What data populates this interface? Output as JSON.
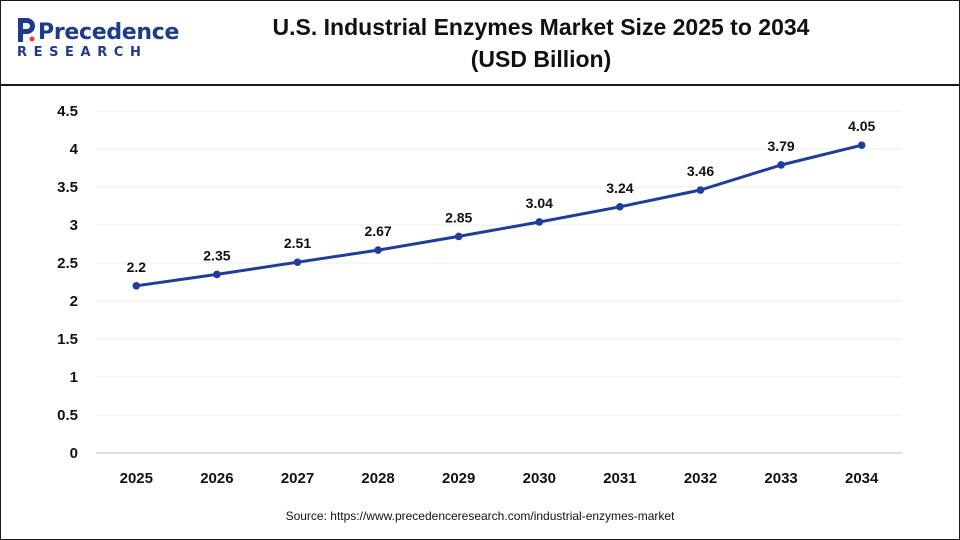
{
  "brand": {
    "name": "Precedence",
    "subtitle": "RESEARCH",
    "color": "#1e3a8a"
  },
  "title_line1": "U.S. Industrial Enzymes Market Size 2025 to 2034",
  "title_line2": "(USD Billion)",
  "source": "Source: https://www.precedenceresearch.com/industrial-enzymes-market",
  "colors": {
    "line": "#1f3d99",
    "grid": "#ececec",
    "axis": "#bfbfbf"
  },
  "chart_data": {
    "type": "line",
    "title": "U.S. Industrial Enzymes Market Size 2025 to 2034 (USD Billion)",
    "xlabel": "",
    "ylabel": "",
    "categories": [
      "2025",
      "2026",
      "2027",
      "2028",
      "2029",
      "2030",
      "2031",
      "2032",
      "2033",
      "2034"
    ],
    "series": [
      {
        "values": [
          2.2,
          2.35,
          2.51,
          2.67,
          2.85,
          3.04,
          3.24,
          3.46,
          3.79,
          4.05
        ]
      }
    ],
    "data_labels": [
      "2.2",
      "2.35",
      "2.51",
      "2.67",
      "2.85",
      "3.04",
      "3.24",
      "3.46",
      "3.79",
      "4.05"
    ],
    "ylim": [
      0,
      4.5
    ],
    "yticks": [
      0,
      0.5,
      1,
      1.5,
      2,
      2.5,
      3,
      3.5,
      4,
      4.5
    ],
    "ytick_labels": [
      "0",
      "0.5",
      "1",
      "1.5",
      "2",
      "2.5",
      "3",
      "3.5",
      "4",
      "4.5"
    ],
    "grid": true,
    "legend": "none",
    "markers": true
  }
}
